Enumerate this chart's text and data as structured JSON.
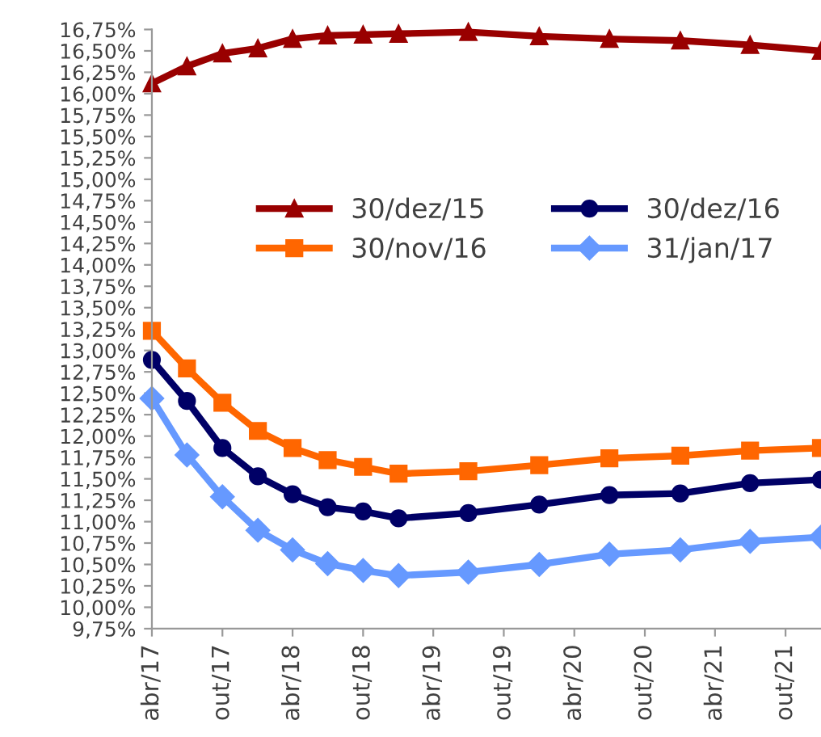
{
  "chart_data": {
    "type": "line",
    "x": [
      "2017-04",
      "2017-07",
      "2017-10",
      "2018-01",
      "2018-04",
      "2018-07",
      "2018-10",
      "2019-01",
      "2019-07",
      "2020-01",
      "2020-07",
      "2021-01",
      "2021-07",
      "2022-01"
    ],
    "series": [
      {
        "name": "30/dez/15",
        "color": "#990000",
        "marker": "triangle",
        "values": [
          16.12,
          16.32,
          16.47,
          16.53,
          16.64,
          16.68,
          16.69,
          16.7,
          16.72,
          16.67,
          16.64,
          16.62,
          16.57,
          16.5
        ]
      },
      {
        "name": "30/nov/16",
        "color": "#ff6600",
        "marker": "square",
        "values": [
          13.23,
          12.79,
          12.39,
          12.06,
          11.86,
          11.72,
          11.64,
          11.56,
          11.59,
          11.66,
          11.74,
          11.77,
          11.83,
          11.86
        ]
      },
      {
        "name": "30/dez/16",
        "color": "#000066",
        "marker": "circle",
        "values": [
          12.89,
          12.41,
          11.86,
          11.53,
          11.32,
          11.17,
          11.12,
          11.04,
          11.1,
          11.2,
          11.31,
          11.33,
          11.45,
          11.49
        ]
      },
      {
        "name": "31/jan/17",
        "color": "#6699ff",
        "marker": "diamond",
        "values": [
          12.44,
          11.78,
          11.29,
          10.9,
          10.67,
          10.51,
          10.43,
          10.37,
          10.41,
          10.5,
          10.62,
          10.67,
          10.77,
          10.82
        ]
      }
    ],
    "xlim": [
      "2017-04",
      "2022-01"
    ],
    "xticks": [
      {
        "value": "2017-04",
        "label": "abr/17"
      },
      {
        "value": "2017-10",
        "label": "out/17"
      },
      {
        "value": "2018-04",
        "label": "abr/18"
      },
      {
        "value": "2018-10",
        "label": "out/18"
      },
      {
        "value": "2019-04",
        "label": "abr/19"
      },
      {
        "value": "2019-10",
        "label": "out/19"
      },
      {
        "value": "2020-04",
        "label": "abr/20"
      },
      {
        "value": "2020-10",
        "label": "out/20"
      },
      {
        "value": "2021-04",
        "label": "abr/21"
      },
      {
        "value": "2021-10",
        "label": "out/21"
      }
    ],
    "ylim": [
      9.75,
      16.75
    ],
    "yticks": [
      {
        "value": 9.75,
        "label": "9,75%"
      },
      {
        "value": 10.0,
        "label": "10,00%"
      },
      {
        "value": 10.25,
        "label": "10,25%"
      },
      {
        "value": 10.5,
        "label": "10,50%"
      },
      {
        "value": 10.75,
        "label": "10,75%"
      },
      {
        "value": 11.0,
        "label": "11,00%"
      },
      {
        "value": 11.25,
        "label": "11,25%"
      },
      {
        "value": 11.5,
        "label": "11,50%"
      },
      {
        "value": 11.75,
        "label": "11,75%"
      },
      {
        "value": 12.0,
        "label": "12,00%"
      },
      {
        "value": 12.25,
        "label": "12,25%"
      },
      {
        "value": 12.5,
        "label": "12,50%"
      },
      {
        "value": 12.75,
        "label": "12,75%"
      },
      {
        "value": 13.0,
        "label": "13,00%"
      },
      {
        "value": 13.25,
        "label": "13,25%"
      },
      {
        "value": 13.5,
        "label": "13,50%"
      },
      {
        "value": 13.75,
        "label": "13,75%"
      },
      {
        "value": 14.0,
        "label": "14,00%"
      },
      {
        "value": 14.25,
        "label": "14,25%"
      },
      {
        "value": 14.5,
        "label": "14,50%"
      },
      {
        "value": 14.75,
        "label": "14,75%"
      },
      {
        "value": 15.0,
        "label": "15,00%"
      },
      {
        "value": 15.25,
        "label": "15,25%"
      },
      {
        "value": 15.5,
        "label": "15,50%"
      },
      {
        "value": 15.75,
        "label": "15,75%"
      },
      {
        "value": 16.0,
        "label": "16,00%"
      },
      {
        "value": 16.25,
        "label": "16,25%"
      },
      {
        "value": 16.5,
        "label": "16,50%"
      },
      {
        "value": 16.75,
        "label": "16,75%"
      }
    ],
    "grid": false,
    "legend": "top",
    "line_style": "solid"
  }
}
